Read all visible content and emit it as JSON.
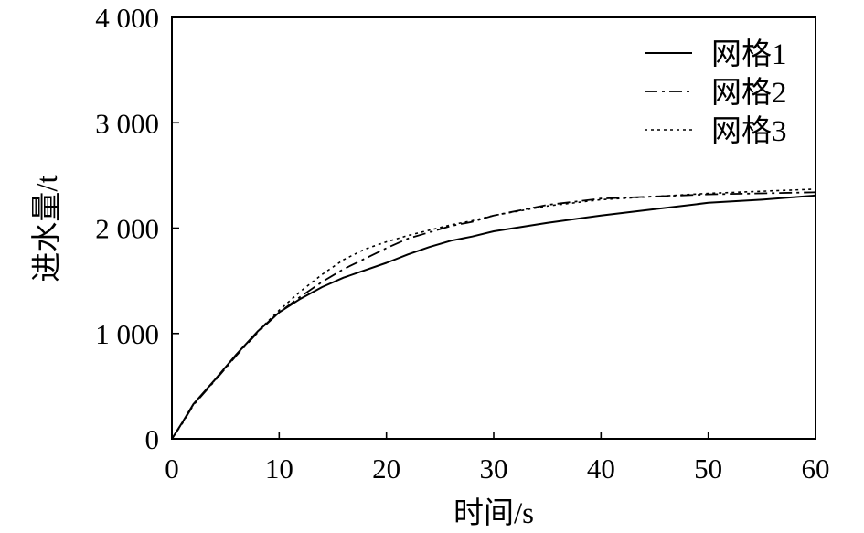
{
  "chart_data": {
    "type": "line",
    "xlabel": "时间/s",
    "ylabel": "进水量/t",
    "xlim": [
      0,
      60
    ],
    "ylim": [
      0,
      4000
    ],
    "x_ticks": [
      0,
      10,
      20,
      30,
      40,
      50,
      60
    ],
    "x_tick_labels": [
      "0",
      "10",
      "20",
      "30",
      "40",
      "50",
      "60"
    ],
    "y_ticks": [
      0,
      1000,
      2000,
      3000,
      4000
    ],
    "y_tick_labels": [
      "0",
      "1 000",
      "2 000",
      "3 000",
      "4 000"
    ],
    "grid": false,
    "legend_position": "top-right",
    "series": [
      {
        "name": "网格1",
        "style": "solid",
        "color": "#000000",
        "x": [
          0,
          1,
          2,
          4,
          6,
          8,
          10,
          12,
          14,
          16,
          18,
          20,
          22,
          24,
          26,
          28,
          30,
          35,
          40,
          45,
          50,
          55,
          60
        ],
        "y": [
          0,
          160,
          330,
          560,
          800,
          1020,
          1200,
          1330,
          1440,
          1530,
          1600,
          1670,
          1750,
          1820,
          1880,
          1920,
          1970,
          2050,
          2120,
          2180,
          2240,
          2270,
          2310
        ]
      },
      {
        "name": "网格2",
        "style": "dashdot",
        "color": "#000000",
        "x": [
          0,
          1,
          2,
          4,
          6,
          8,
          10,
          12,
          14,
          16,
          18,
          20,
          22,
          24,
          26,
          28,
          30,
          35,
          40,
          45,
          50,
          55,
          60
        ],
        "y": [
          0,
          150,
          320,
          550,
          790,
          1010,
          1200,
          1350,
          1490,
          1610,
          1710,
          1810,
          1900,
          1960,
          2020,
          2060,
          2120,
          2220,
          2280,
          2300,
          2320,
          2330,
          2340
        ]
      },
      {
        "name": "网格3",
        "style": "dotted",
        "color": "#000000",
        "x": [
          0,
          1,
          2,
          4,
          6,
          8,
          10,
          12,
          14,
          16,
          18,
          20,
          22,
          24,
          26,
          28,
          30,
          35,
          40,
          45,
          50,
          55,
          60
        ],
        "y": [
          0,
          155,
          325,
          555,
          795,
          1020,
          1220,
          1400,
          1560,
          1700,
          1800,
          1870,
          1930,
          1980,
          2030,
          2070,
          2120,
          2210,
          2270,
          2300,
          2330,
          2350,
          2370
        ]
      }
    ]
  }
}
